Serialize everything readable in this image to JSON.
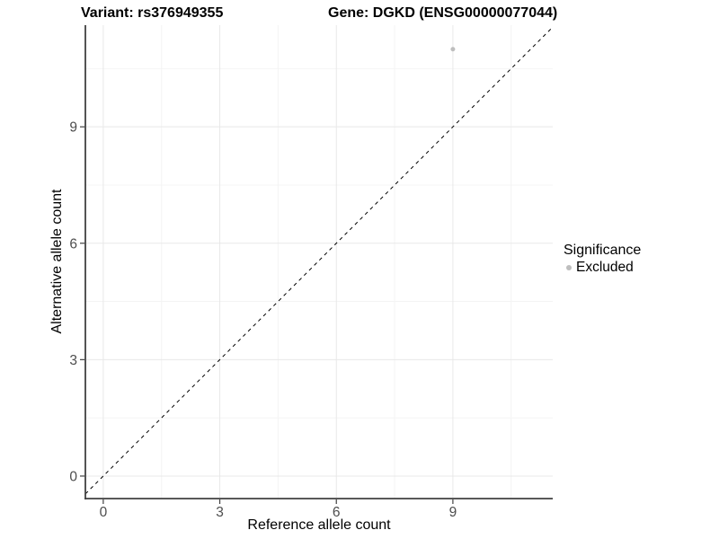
{
  "chart_data": {
    "type": "scatter",
    "title_left": "Variant: rs376949355",
    "title_right": "Gene: DGKD (ENSG00000077044)",
    "xlabel": "Reference allele count",
    "ylabel": "Alternative allele count",
    "x_ticks": [
      0,
      3,
      6,
      9
    ],
    "y_ticks": [
      0,
      3,
      6,
      9
    ],
    "xlim": [
      -0.46,
      11.57
    ],
    "ylim": [
      -0.58,
      11.62
    ],
    "grid": {
      "major": [
        0,
        3,
        6,
        9
      ],
      "minor": [
        1.5,
        4.5,
        7.5,
        10.5
      ],
      "major_color": "#e8e8e8",
      "minor_color": "#f4f4f4"
    },
    "colors": {
      "background": "#ffffff",
      "axis_line": "#404040",
      "tick_label": "#4d4d4d",
      "point_gray": "#bebebe"
    },
    "reference_line": {
      "type": "identity",
      "style": "dashed",
      "color": "#000000"
    },
    "series": [
      {
        "name": "Excluded",
        "color": "#bebebe",
        "points": [
          {
            "x": 9,
            "y": 11
          }
        ]
      }
    ],
    "legend": {
      "title": "Significance",
      "position": "right",
      "entries": [
        {
          "label": "Excluded",
          "color": "#bebebe"
        }
      ]
    }
  }
}
